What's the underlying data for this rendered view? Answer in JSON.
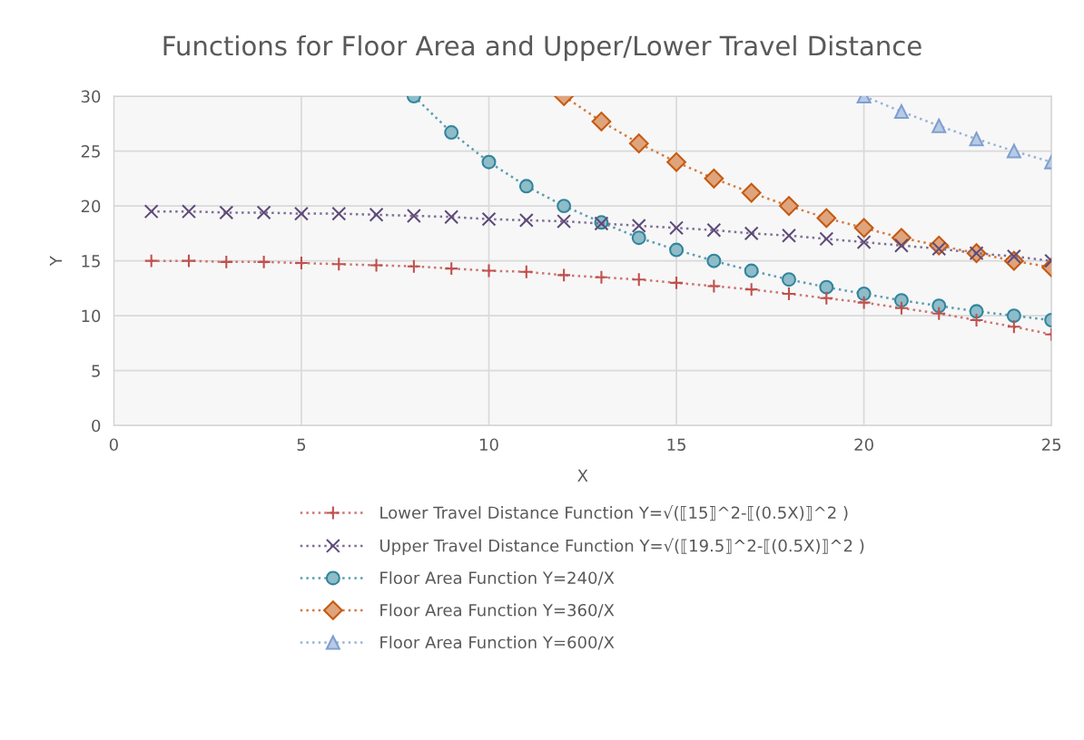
{
  "chart_data": {
    "type": "line",
    "title": "Functions for Floor Area and Upper/Lower Travel Distance",
    "xlabel": "X",
    "ylabel": "Y",
    "xlim": [
      0,
      25
    ],
    "xticks": [
      0,
      5,
      10,
      15,
      20,
      25
    ],
    "ylim": [
      0,
      30
    ],
    "yticks": [
      0,
      5,
      10,
      15,
      20,
      25,
      30
    ],
    "grid": true,
    "legend": "bottom",
    "line_style": "dotted",
    "series": [
      {
        "name": "Lower Travel Distance Function Y=√(⟦15⟧^2-⟦(0.5X)⟧^2 )",
        "color": "#c0504d",
        "marker": "plus",
        "x": [
          1,
          2,
          3,
          4,
          5,
          6,
          7,
          8,
          9,
          10,
          11,
          12,
          13,
          14,
          15,
          16,
          17,
          18,
          19,
          20,
          21,
          22,
          23,
          24,
          25
        ],
        "values": [
          15.0,
          15.0,
          14.9,
          14.9,
          14.8,
          14.7,
          14.6,
          14.5,
          14.3,
          14.1,
          14.0,
          13.7,
          13.5,
          13.3,
          13.0,
          12.7,
          12.4,
          12.0,
          11.6,
          11.2,
          10.7,
          10.2,
          9.6,
          9.0,
          8.3
        ]
      },
      {
        "name": "Upper Travel Distance Function Y=√(⟦19.5⟧^2-⟦(0.5X)⟧^2 )",
        "color": "#5f4b7a",
        "marker": "cross",
        "x": [
          1,
          2,
          3,
          4,
          5,
          6,
          7,
          8,
          9,
          10,
          11,
          12,
          13,
          14,
          15,
          16,
          17,
          18,
          19,
          20,
          21,
          22,
          23,
          24,
          25
        ],
        "values": [
          19.5,
          19.5,
          19.4,
          19.4,
          19.3,
          19.3,
          19.2,
          19.1,
          19.0,
          18.8,
          18.7,
          18.6,
          18.4,
          18.2,
          18.0,
          17.8,
          17.5,
          17.3,
          17.0,
          16.7,
          16.4,
          16.1,
          15.7,
          15.4,
          15.0
        ]
      },
      {
        "name": "Floor Area Function Y=240/X",
        "color": "#31859c",
        "marker": "circle",
        "x": [
          8,
          9,
          10,
          11,
          12,
          13,
          14,
          15,
          16,
          17,
          18,
          19,
          20,
          21,
          22,
          23,
          24,
          25
        ],
        "values": [
          30.0,
          26.7,
          24.0,
          21.8,
          20.0,
          18.5,
          17.1,
          16.0,
          15.0,
          14.1,
          13.3,
          12.6,
          12.0,
          11.4,
          10.9,
          10.4,
          10.0,
          9.6
        ]
      },
      {
        "name": "Floor Area Function Y=360/X",
        "color": "#c55a11",
        "marker": "diamond",
        "x": [
          12,
          13,
          14,
          15,
          16,
          17,
          18,
          19,
          20,
          21,
          22,
          23,
          24,
          25
        ],
        "values": [
          30.0,
          27.7,
          25.7,
          24.0,
          22.5,
          21.2,
          20.0,
          18.9,
          18.0,
          17.1,
          16.4,
          15.7,
          15.0,
          14.4
        ]
      },
      {
        "name": "Floor Area Function Y=600/X",
        "color": "#7f9fd0",
        "marker": "triangle",
        "x": [
          20,
          21,
          22,
          23,
          24,
          25
        ],
        "values": [
          30.0,
          28.6,
          27.3,
          26.1,
          25.0,
          24.0
        ]
      }
    ]
  }
}
